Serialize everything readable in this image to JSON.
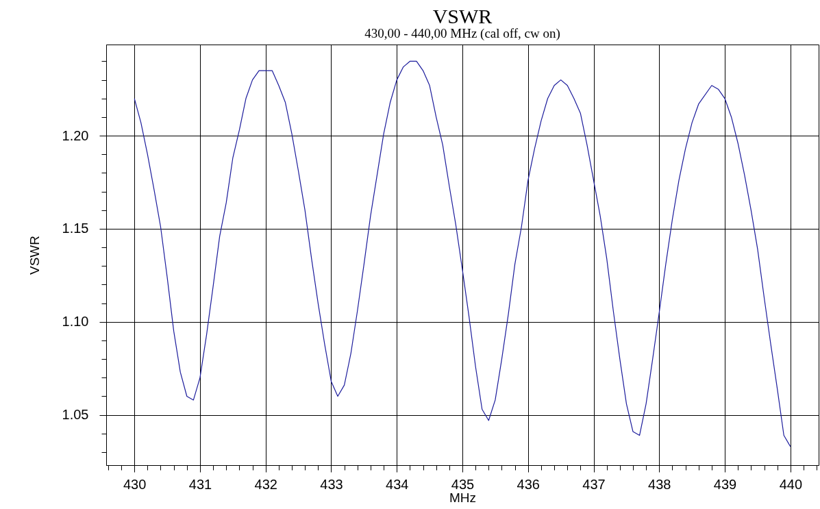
{
  "chart_data": {
    "type": "line",
    "title": "VSWR",
    "subtitle": "430,00 - 440,00 MHz (cal off, cw on)",
    "xlabel": "MHz",
    "ylabel": "VSWR",
    "x": [
      430.0,
      430.1,
      430.2,
      430.3,
      430.4,
      430.5,
      430.6,
      430.7,
      430.8,
      430.9,
      431.0,
      431.1,
      431.2,
      431.3,
      431.4,
      431.5,
      431.6,
      431.7,
      431.8,
      431.9,
      432.1,
      432.2,
      432.3,
      432.4,
      432.5,
      432.6,
      432.7,
      432.8,
      432.9,
      433.0,
      433.1,
      433.2,
      433.3,
      433.4,
      433.5,
      433.6,
      433.7,
      433.8,
      433.9,
      434.0,
      434.1,
      434.2,
      434.3,
      434.4,
      434.5,
      434.6,
      434.7,
      434.8,
      434.9,
      435.0,
      435.1,
      435.2,
      435.3,
      435.4,
      435.5,
      435.6,
      435.7,
      435.8,
      435.9,
      436.0,
      436.1,
      436.2,
      436.3,
      436.4,
      436.5,
      436.6,
      436.7,
      436.8,
      436.9,
      437.0,
      437.1,
      437.2,
      437.3,
      437.4,
      437.5,
      437.6,
      437.7,
      437.8,
      437.9,
      438.0,
      438.1,
      438.2,
      438.3,
      438.4,
      438.5,
      438.6,
      438.8,
      438.9,
      439.0,
      439.1,
      439.2,
      439.3,
      439.4,
      439.5,
      439.6,
      439.7,
      439.8,
      439.9,
      440.0
    ],
    "series": [
      {
        "color": "#1c1c9c",
        "values": [
          1.22,
          1.207,
          1.19,
          1.171,
          1.151,
          1.124,
          1.095,
          1.073,
          1.06,
          1.058,
          1.07,
          1.093,
          1.119,
          1.146,
          1.164,
          1.188,
          1.203,
          1.22,
          1.23,
          1.235,
          1.235,
          1.227,
          1.218,
          1.201,
          1.181,
          1.16,
          1.134,
          1.11,
          1.088,
          1.068,
          1.06,
          1.066,
          1.083,
          1.106,
          1.131,
          1.157,
          1.179,
          1.201,
          1.218,
          1.23,
          1.237,
          1.24,
          1.24,
          1.235,
          1.227,
          1.21,
          1.195,
          1.173,
          1.152,
          1.128,
          1.103,
          1.076,
          1.053,
          1.047,
          1.058,
          1.08,
          1.104,
          1.131,
          1.151,
          1.176,
          1.193,
          1.208,
          1.22,
          1.227,
          1.23,
          1.227,
          1.22,
          1.212,
          1.195,
          1.176,
          1.157,
          1.134,
          1.106,
          1.08,
          1.056,
          1.041,
          1.039,
          1.056,
          1.08,
          1.105,
          1.131,
          1.155,
          1.176,
          1.193,
          1.207,
          1.217,
          1.227,
          1.225,
          1.22,
          1.21,
          1.196,
          1.179,
          1.16,
          1.139,
          1.113,
          1.088,
          1.064,
          1.039,
          1.033
        ]
      }
    ],
    "xlim": [
      429.57,
      440.43
    ],
    "ylim": [
      1.023,
      1.249
    ],
    "xticks": [
      {
        "value": 429.6,
        "label": null
      },
      {
        "value": 429.8,
        "label": null
      },
      430,
      {
        "value": 430.2,
        "label": null
      },
      {
        "value": 430.4,
        "label": null
      },
      {
        "value": 430.6,
        "label": null
      },
      {
        "value": 430.8,
        "label": null
      },
      431,
      {
        "value": 431.2,
        "label": null
      },
      {
        "value": 431.4,
        "label": null
      },
      {
        "value": 431.6,
        "label": null
      },
      {
        "value": 431.8,
        "label": null
      },
      432,
      {
        "value": 432.2,
        "label": null
      },
      {
        "value": 432.4,
        "label": null
      },
      {
        "value": 432.6,
        "label": null
      },
      {
        "value": 432.8,
        "label": null
      },
      433,
      {
        "value": 433.2,
        "label": null
      },
      {
        "value": 433.4,
        "label": null
      },
      {
        "value": 433.6,
        "label": null
      },
      {
        "value": 433.8,
        "label": null
      },
      434,
      {
        "value": 434.2,
        "label": null
      },
      {
        "value": 434.4,
        "label": null
      },
      {
        "value": 434.6,
        "label": null
      },
      {
        "value": 434.8,
        "label": null
      },
      435,
      {
        "value": 435.2,
        "label": null
      },
      {
        "value": 435.4,
        "label": null
      },
      {
        "value": 435.6,
        "label": null
      },
      {
        "value": 435.8,
        "label": null
      },
      436,
      {
        "value": 436.2,
        "label": null
      },
      {
        "value": 436.4,
        "label": null
      },
      {
        "value": 436.6,
        "label": null
      },
      {
        "value": 436.8,
        "label": null
      },
      437,
      {
        "value": 437.2,
        "label": null
      },
      {
        "value": 437.4,
        "label": null
      },
      {
        "value": 437.6,
        "label": null
      },
      {
        "value": 437.8,
        "label": null
      },
      438,
      {
        "value": 438.2,
        "label": null
      },
      {
        "value": 438.4,
        "label": null
      },
      {
        "value": 438.6,
        "label": null
      },
      {
        "value": 438.8,
        "label": null
      },
      439,
      {
        "value": 439.2,
        "label": null
      },
      {
        "value": 439.4,
        "label": null
      },
      {
        "value": 439.6,
        "label": null
      },
      {
        "value": 439.8,
        "label": null
      },
      440,
      {
        "value": 440.2,
        "label": null
      },
      {
        "value": 440.4,
        "label": null
      }
    ],
    "yticks": [
      {
        "value": 1.03,
        "label": null
      },
      {
        "value": 1.04,
        "label": null
      },
      {
        "value": 1.05,
        "label": "1.05"
      },
      {
        "value": 1.06,
        "label": null
      },
      {
        "value": 1.07,
        "label": null
      },
      {
        "value": 1.08,
        "label": null
      },
      {
        "value": 1.09,
        "label": null
      },
      {
        "value": 1.1,
        "label": "1.10"
      },
      {
        "value": 1.11,
        "label": null
      },
      {
        "value": 1.12,
        "label": null
      },
      {
        "value": 1.13,
        "label": null
      },
      {
        "value": 1.14,
        "label": null
      },
      {
        "value": 1.15,
        "label": "1.15"
      },
      {
        "value": 1.16,
        "label": null
      },
      {
        "value": 1.17,
        "label": null
      },
      {
        "value": 1.18,
        "label": null
      },
      {
        "value": 1.19,
        "label": null
      },
      {
        "value": 1.2,
        "label": "1.20"
      },
      {
        "value": 1.21,
        "label": null
      },
      {
        "value": 1.22,
        "label": null
      },
      {
        "value": 1.23,
        "label": null
      },
      {
        "value": 1.24,
        "label": null
      }
    ],
    "grid": true
  }
}
